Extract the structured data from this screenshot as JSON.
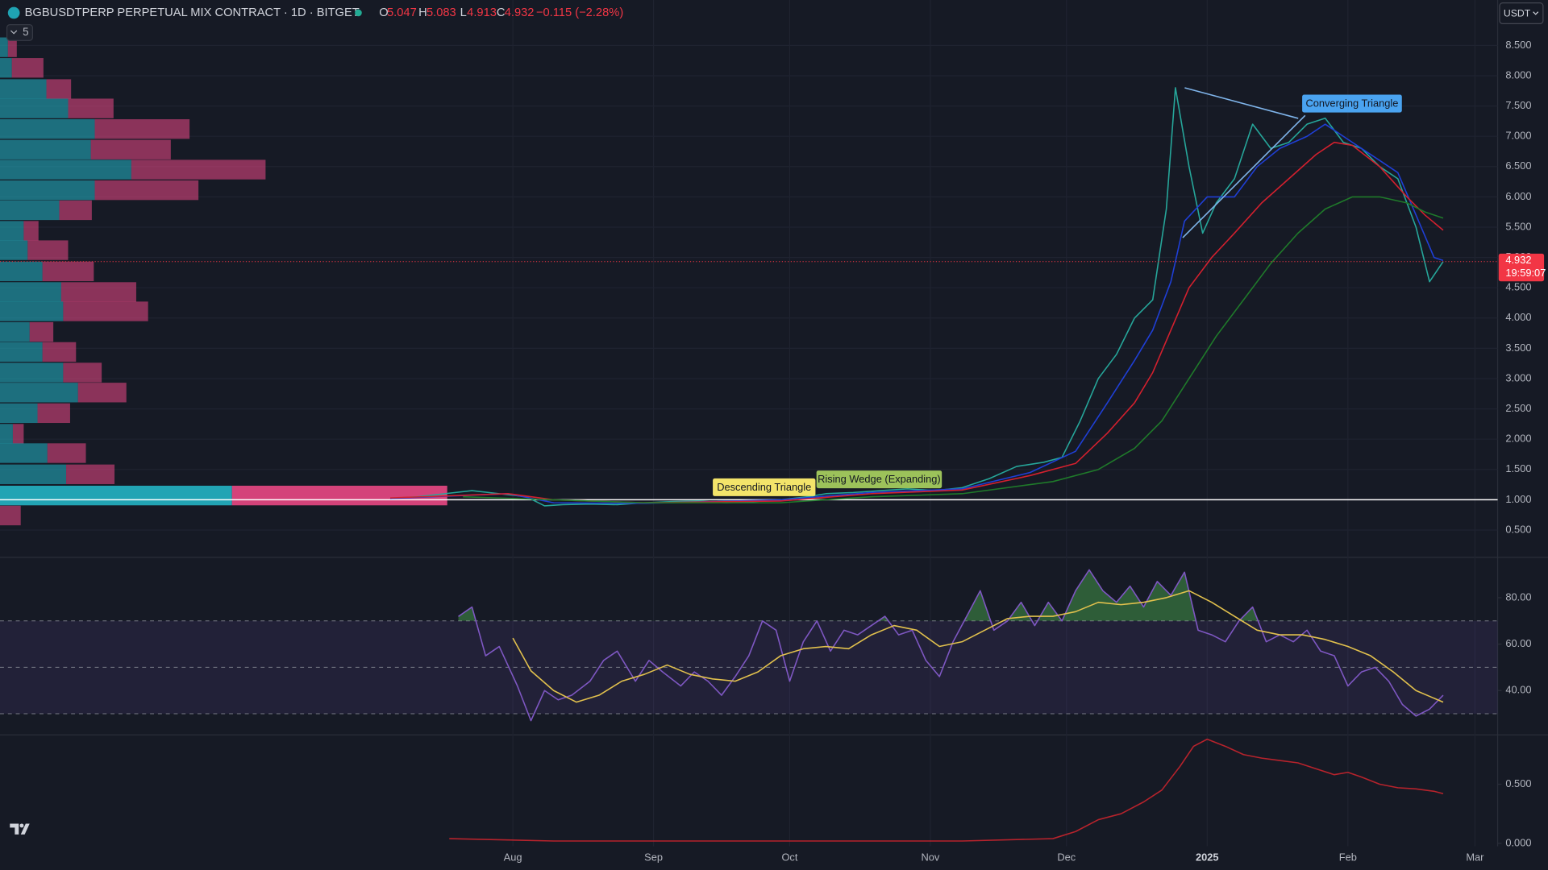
{
  "header": {
    "symbol": "BGBUSDTPERP PERPETUAL MIX CONTRACT · 1D · BITGET",
    "open_label": "O",
    "open": "5.047",
    "high_label": "H",
    "high": "5.083",
    "low_label": "L",
    "low": "4.913",
    "close_label": "C",
    "close": "4.932",
    "change": "−0.115 (−2.28%)",
    "currency": "USDT",
    "indicators": "5"
  },
  "chart_data": [
    {
      "type": "line",
      "xlim": [
        -82,
        248
      ],
      "ylim": [
        0.05,
        9.25
      ],
      "yticks": [
        {
          "value": 0.5,
          "label": "0.500"
        },
        {
          "value": 1,
          "label": "1.000"
        },
        {
          "value": 1.5,
          "label": "1.500"
        },
        {
          "value": 2,
          "label": "2.000"
        },
        {
          "value": 2.5,
          "label": "2.500"
        },
        {
          "value": 3,
          "label": "3.000"
        },
        {
          "value": 3.5,
          "label": "3.500"
        },
        {
          "value": 4,
          "label": "4.000"
        },
        {
          "value": 4.5,
          "label": "4.500"
        },
        {
          "value": 5,
          "label": "5.000"
        },
        {
          "value": 5.5,
          "label": "5.500"
        },
        {
          "value": 6,
          "label": "6.000"
        },
        {
          "value": 6.5,
          "label": "6.500"
        },
        {
          "value": 7,
          "label": "7.000"
        },
        {
          "value": 7.5,
          "label": "7.500"
        },
        {
          "value": 8,
          "label": "8.000"
        },
        {
          "value": 8.5,
          "label": "8.500"
        }
      ],
      "grid": true,
      "series": [
        {
          "color": "#26a69a",
          "x": [
            4,
            10,
            16,
            22,
            28,
            34,
            38,
            42,
            48,
            54,
            60,
            66,
            72,
            78,
            84,
            90,
            96,
            100,
            106,
            112,
            118,
            124,
            130,
            136,
            142,
            148,
            152,
            156,
            160,
            164,
            168,
            172,
            175,
            177,
            180,
            183,
            186,
            190,
            194,
            198,
            202,
            206,
            210,
            214,
            218,
            222,
            226,
            230,
            233,
            236
          ],
          "values": [
            1.02,
            1.05,
            1.1,
            1.15,
            1.1,
            1.05,
            0.9,
            0.92,
            0.93,
            0.92,
            0.95,
            0.97,
            0.98,
            0.95,
            0.97,
            1.0,
            1.05,
            1.1,
            1.12,
            1.15,
            1.18,
            1.15,
            1.2,
            1.35,
            1.55,
            1.62,
            1.7,
            2.3,
            3.0,
            3.4,
            4.0,
            4.3,
            5.8,
            7.8,
            6.5,
            5.4,
            5.9,
            6.3,
            7.2,
            6.8,
            6.9,
            7.2,
            7.3,
            6.9,
            6.8,
            6.5,
            6.3,
            5.5,
            4.6,
            4.932
          ]
        },
        {
          "color": "#1f3fd6",
          "x": [
            4,
            30,
            40,
            60,
            90,
            110,
            130,
            145,
            155,
            162,
            168,
            172,
            176,
            179,
            184,
            190,
            195,
            200,
            206,
            210,
            214,
            218,
            222,
            226,
            230,
            234,
            236
          ],
          "values": [
            1.02,
            1.1,
            0.95,
            0.94,
            1.0,
            1.12,
            1.18,
            1.45,
            1.8,
            2.6,
            3.3,
            3.8,
            4.6,
            5.6,
            6.0,
            6.0,
            6.5,
            6.8,
            7.0,
            7.2,
            7.0,
            6.8,
            6.6,
            6.4,
            5.7,
            5.0,
            4.95
          ]
        },
        {
          "color": "#d3202e",
          "x": [
            4,
            30,
            40,
            60,
            90,
            110,
            130,
            145,
            155,
            162,
            168,
            172,
            176,
            180,
            185,
            190,
            196,
            202,
            208,
            212,
            216,
            222,
            228,
            232,
            236
          ],
          "values": [
            1.03,
            1.1,
            1.0,
            0.95,
            0.98,
            1.1,
            1.16,
            1.4,
            1.6,
            2.1,
            2.6,
            3.1,
            3.8,
            4.5,
            5.0,
            5.4,
            5.9,
            6.3,
            6.7,
            6.9,
            6.85,
            6.5,
            6.0,
            5.7,
            5.45
          ]
        },
        {
          "color": "#1f7a2a",
          "x": [
            20,
            40,
            60,
            90,
            110,
            130,
            150,
            160,
            168,
            174,
            180,
            186,
            192,
            198,
            204,
            210,
            216,
            222,
            228,
            232,
            236
          ],
          "values": [
            1.05,
            1.0,
            0.95,
            0.95,
            1.05,
            1.1,
            1.3,
            1.5,
            1.85,
            2.3,
            3.0,
            3.7,
            4.3,
            4.9,
            5.4,
            5.8,
            6.0,
            6.0,
            5.9,
            5.75,
            5.65
          ]
        }
      ],
      "volume_profile": {
        "levels": [
          8.47,
          8.13,
          7.78,
          7.46,
          7.12,
          6.78,
          6.45,
          6.11,
          5.78,
          5.44,
          5.12,
          4.77,
          4.43,
          4.11,
          3.77,
          3.44,
          3.1,
          2.77,
          2.43,
          2.09,
          1.77,
          1.42,
          1.07,
          0.74
        ],
        "up": [
          8,
          12,
          47,
          69,
          96,
          92,
          133,
          96,
          60,
          24,
          28,
          43,
          62,
          64,
          30,
          43,
          64,
          79,
          38,
          13,
          48,
          67,
          235,
          0
        ],
        "down": [
          9,
          32,
          25,
          46,
          96,
          81,
          136,
          105,
          33,
          15,
          41,
          52,
          76,
          86,
          24,
          34,
          39,
          49,
          33,
          11,
          39,
          49,
          218,
          21
        ],
        "up_color": "#22a4b4",
        "down_color": "#d4437a"
      },
      "horizontal_line": 1,
      "last_price": 4.932,
      "countdown": "19:59:07",
      "annotations": [
        "Descending Triangle",
        "Rising Wedge (Expanding)",
        "Converging Triangle"
      ]
    },
    {
      "type": "line",
      "xlim": [
        -82,
        248
      ],
      "ylim": [
        20.9,
        97.4
      ],
      "yticks": [
        {
          "value": 40,
          "label": "40.00"
        },
        {
          "value": 60,
          "label": "60.00"
        },
        {
          "value": 80,
          "label": "80.00"
        }
      ],
      "levels": [
        70,
        50,
        30
      ],
      "band": [
        30,
        70
      ],
      "series": [
        {
          "color": "#7e57c2",
          "x": [
            19,
            22,
            25,
            28,
            32,
            35,
            38,
            41,
            44,
            48,
            51,
            54,
            58,
            61,
            64,
            68,
            71,
            74,
            77,
            80,
            83,
            86,
            89,
            92,
            95,
            98,
            101,
            104,
            107,
            110,
            113,
            116,
            119,
            122,
            125,
            128,
            131,
            134,
            137,
            140,
            143,
            146,
            149,
            152,
            155,
            158,
            161,
            164,
            167,
            170,
            173,
            176,
            179,
            182,
            185,
            188,
            191,
            194,
            197,
            200,
            203,
            206,
            209,
            212,
            215,
            218,
            221,
            224,
            227,
            230,
            233,
            236
          ],
          "values": [
            71.9,
            76,
            55,
            59,
            42,
            27,
            40,
            36,
            38,
            44,
            53,
            57,
            44,
            53,
            48,
            42,
            48,
            44,
            38,
            46,
            55,
            70,
            66,
            44,
            61,
            70,
            57,
            66,
            64,
            68,
            72,
            64,
            66,
            53,
            46,
            61,
            72,
            83,
            66,
            70,
            78,
            68,
            78,
            70,
            83,
            92,
            83,
            78,
            85,
            76,
            87,
            81,
            91,
            66,
            64,
            61,
            70,
            76,
            61,
            64,
            61,
            66,
            57,
            55,
            42,
            48,
            50,
            44,
            34,
            29,
            32,
            38
          ]
        },
        {
          "color": "#e2c14d",
          "x": [
            31,
            35,
            40,
            45,
            50,
            55,
            60,
            65,
            70,
            75,
            80,
            85,
            90,
            95,
            100,
            105,
            110,
            115,
            120,
            125,
            130,
            135,
            140,
            145,
            150,
            155,
            160,
            165,
            170,
            175,
            180,
            185,
            190,
            195,
            200,
            205,
            210,
            215,
            220,
            225,
            230,
            236
          ],
          "values": [
            62.6,
            48.5,
            40,
            35,
            38,
            44,
            47,
            51,
            47,
            45,
            44,
            48,
            55,
            58,
            59,
            58,
            64,
            68,
            66,
            59,
            61,
            66,
            71,
            72,
            72,
            74,
            78,
            77,
            78,
            80,
            83,
            78,
            72,
            66,
            64,
            64,
            62,
            59,
            55,
            48,
            40,
            35
          ]
        }
      ]
    },
    {
      "type": "line",
      "xlim": [
        -82,
        248
      ],
      "ylim": [
        -0.025,
        0.917
      ],
      "yticks": [
        {
          "value": 0,
          "label": "0.000"
        },
        {
          "value": 0.5,
          "label": "0.500"
        }
      ],
      "xticks": [
        {
          "value": 31,
          "label": "Aug"
        },
        {
          "value": 62,
          "label": "Sep"
        },
        {
          "value": 92,
          "label": "Oct"
        },
        {
          "value": 123,
          "label": "Nov"
        },
        {
          "value": 153,
          "label": "Dec"
        },
        {
          "value": 184,
          "label": "2025"
        },
        {
          "value": 215,
          "label": "Feb"
        },
        {
          "value": 243,
          "label": "Mar"
        }
      ],
      "series": [
        {
          "color": "#b7232c",
          "x": [
            17,
            40,
            70,
            100,
            130,
            150,
            155,
            160,
            165,
            170,
            174,
            178,
            181,
            184,
            188,
            192,
            196,
            200,
            204,
            208,
            212,
            215,
            218,
            222,
            226,
            230,
            234,
            236
          ],
          "values": [
            0.04,
            0.02,
            0.02,
            0.02,
            0.02,
            0.04,
            0.1,
            0.2,
            0.25,
            0.35,
            0.45,
            0.65,
            0.82,
            0.88,
            0.82,
            0.75,
            0.72,
            0.7,
            0.68,
            0.63,
            0.58,
            0.6,
            0.56,
            0.5,
            0.47,
            0.46,
            0.44,
            0.42
          ]
        }
      ]
    }
  ]
}
